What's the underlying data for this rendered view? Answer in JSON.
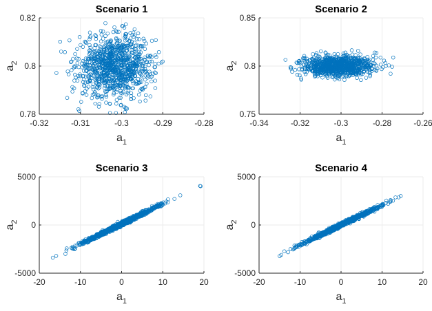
{
  "chart_data": [
    {
      "type": "scatter",
      "title": "Scenario 1",
      "xlabel": "a",
      "xlabel_sub": "1",
      "ylabel": "a",
      "ylabel_sub": "2",
      "xlim": [
        -0.32,
        -0.28
      ],
      "ylim": [
        0.78,
        0.82
      ],
      "xticks": [
        "-0.32",
        "-0.31",
        "-0.3",
        "-0.29",
        "-0.28"
      ],
      "yticks": [
        "0.78",
        "0.8",
        "0.82"
      ],
      "grid": true,
      "marker": "open-circle",
      "color": "#0072BD",
      "n_points": 1000,
      "distribution": {
        "kind": "gaussian",
        "mean": [
          -0.3015,
          0.8
        ],
        "std": [
          0.0045,
          0.0065
        ],
        "corr": 0.0
      }
    },
    {
      "type": "scatter",
      "title": "Scenario 2",
      "xlabel": "a",
      "xlabel_sub": "1",
      "ylabel": "a",
      "ylabel_sub": "2",
      "xlim": [
        -0.34,
        -0.26
      ],
      "ylim": [
        0.75,
        0.85
      ],
      "xticks": [
        "-0.34",
        "-0.32",
        "-0.3",
        "-0.28",
        "-0.26"
      ],
      "yticks": [
        "0.75",
        "0.8",
        "0.85"
      ],
      "grid": true,
      "marker": "open-circle",
      "color": "#0072BD",
      "n_points": 1000,
      "distribution": {
        "kind": "gaussian",
        "mean": [
          -0.301,
          0.8
        ],
        "std": [
          0.0085,
          0.0055
        ],
        "corr": 0.0
      }
    },
    {
      "type": "scatter",
      "title": "Scenario 3",
      "xlabel": "a",
      "xlabel_sub": "1",
      "ylabel": "a",
      "ylabel_sub": "2",
      "xlim": [
        -20,
        20
      ],
      "ylim": [
        -5000,
        5000
      ],
      "xticks": [
        "-20",
        "-10",
        "0",
        "10",
        "20"
      ],
      "yticks": [
        "-5000",
        "0",
        "5000"
      ],
      "grid": true,
      "marker": "open-circle",
      "color": "#0072BD",
      "n_points": 1000,
      "distribution": {
        "kind": "gaussian",
        "mean": [
          -0.5,
          0
        ],
        "std": [
          5.0,
          1050
        ],
        "corr": 0.995
      }
    },
    {
      "type": "scatter",
      "title": "Scenario 4",
      "xlabel": "a",
      "xlabel_sub": "1",
      "ylabel": "a",
      "ylabel_sub": "2",
      "xlim": [
        -20,
        20
      ],
      "ylim": [
        -5000,
        5000
      ],
      "xticks": [
        "-20",
        "-10",
        "0",
        "10",
        "20"
      ],
      "yticks": [
        "-5000",
        "0",
        "5000"
      ],
      "grid": true,
      "marker": "open-circle",
      "color": "#0072BD",
      "n_points": 1000,
      "distribution": {
        "kind": "gaussian",
        "mean": [
          0,
          0
        ],
        "std": [
          4.8,
          1000
        ],
        "corr": 0.995
      }
    }
  ]
}
